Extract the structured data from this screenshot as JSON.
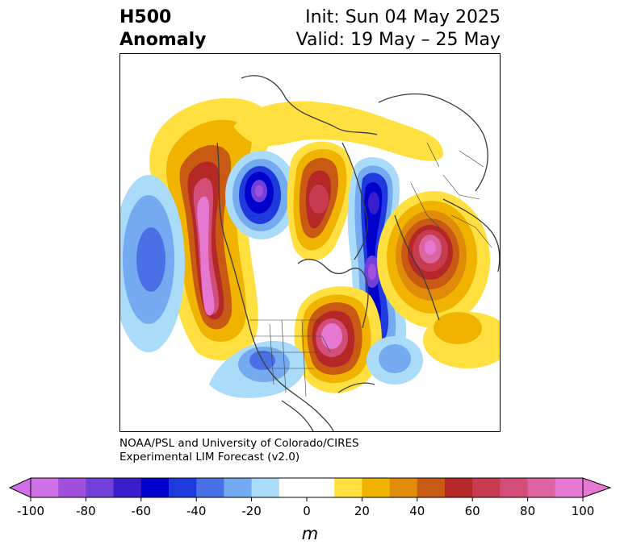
{
  "title": {
    "left_line1": "H500",
    "left_line2": "Anomaly",
    "right_line1": "Init: Sun 04 May 2025",
    "right_line2": "Valid: 19 May – 25 May"
  },
  "credit": {
    "line1": "NOAA/PSL and University of Colorado/CIRES",
    "line2": "Experimental LIM Forecast (v2.0)"
  },
  "colorbar": {
    "unit_label": "m",
    "ticks": [
      "-100",
      "-80",
      "-60",
      "-40",
      "-20",
      "0",
      "20",
      "40",
      "60",
      "80",
      "100"
    ],
    "colors": [
      "#d070e6",
      "#a050dc",
      "#7040d8",
      "#3a1ecc",
      "#0000cc",
      "#1e3adc",
      "#4a70e6",
      "#74aaf0",
      "#aadcfa",
      "#ffffff",
      "#ffffff",
      "#ffe040",
      "#f0b400",
      "#e08c0a",
      "#c85a14",
      "#b42828",
      "#c83c50",
      "#d24e78",
      "#dc64a0",
      "#e678d2"
    ]
  },
  "map": {
    "projection": "polar stereographic, Northern Hemisphere",
    "features": [
      "North America",
      "Greenland",
      "Europe",
      "Arctic coastlines",
      "US state boundaries",
      "country borders"
    ]
  }
}
